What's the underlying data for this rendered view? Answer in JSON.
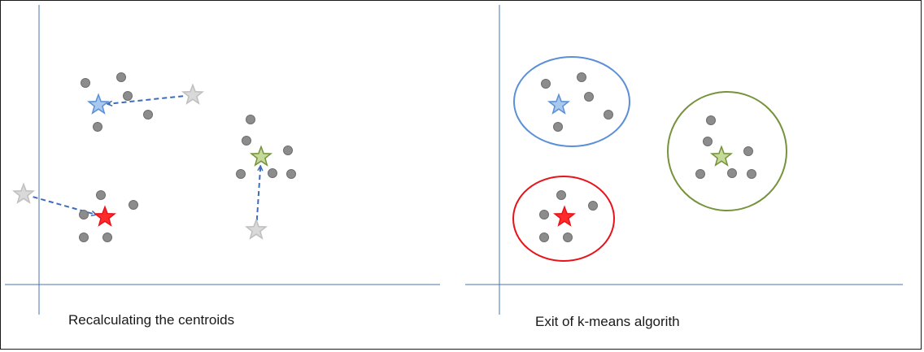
{
  "captions": {
    "left": "Recalculating the centroids",
    "right": "Exit of k-means algorith"
  },
  "colors": {
    "axis": "#4a72b0",
    "point_fill": "#8c8c8c",
    "point_stroke": "#6e6e6e",
    "old_centroid": "#bfbfbf",
    "arrow": "#3d6cb8",
    "blue": "#5b8fd6",
    "red": "#e8131a",
    "green": "#76933c"
  },
  "panels": [
    {
      "id": "left",
      "clusters": [
        {
          "name": "blue",
          "points": [
            [
              105,
              102
            ],
            [
              149,
              95
            ],
            [
              157,
              118
            ],
            [
              182,
              141
            ],
            [
              120,
              156
            ]
          ],
          "centroid": [
            121,
            129
          ],
          "old_centroid": [
            237,
            117
          ]
        },
        {
          "name": "green",
          "points": [
            [
              308,
              147
            ],
            [
              303,
              173
            ],
            [
              354,
              185
            ],
            [
              335,
              213
            ],
            [
              358,
              214
            ],
            [
              296,
              214
            ]
          ],
          "centroid": [
            321,
            193
          ],
          "old_centroid": [
            315,
            283
          ]
        },
        {
          "name": "red",
          "points": [
            [
              124,
              240
            ],
            [
              164,
              252
            ],
            [
              103,
              264
            ],
            [
              103,
              292
            ],
            [
              132,
              292
            ]
          ],
          "centroid": [
            129,
            267
          ],
          "old_centroid": [
            29,
            239
          ]
        }
      ]
    },
    {
      "id": "right",
      "clusters": [
        {
          "name": "blue",
          "points": [
            [
              671,
              103
            ],
            [
              715,
              95
            ],
            [
              724,
              119
            ],
            [
              748,
              141
            ],
            [
              686,
              156
            ]
          ],
          "centroid": [
            687,
            129
          ]
        },
        {
          "name": "green",
          "points": [
            [
              874,
              148
            ],
            [
              870,
              174
            ],
            [
              920,
              186
            ],
            [
              900,
              213
            ],
            [
              924,
              214
            ],
            [
              861,
              214
            ]
          ],
          "centroid": [
            887,
            193
          ]
        },
        {
          "name": "red",
          "points": [
            [
              690,
              240
            ],
            [
              729,
              253
            ],
            [
              669,
              264
            ],
            [
              669,
              292
            ],
            [
              698,
              292
            ]
          ],
          "centroid": [
            694,
            267
          ]
        }
      ]
    }
  ]
}
